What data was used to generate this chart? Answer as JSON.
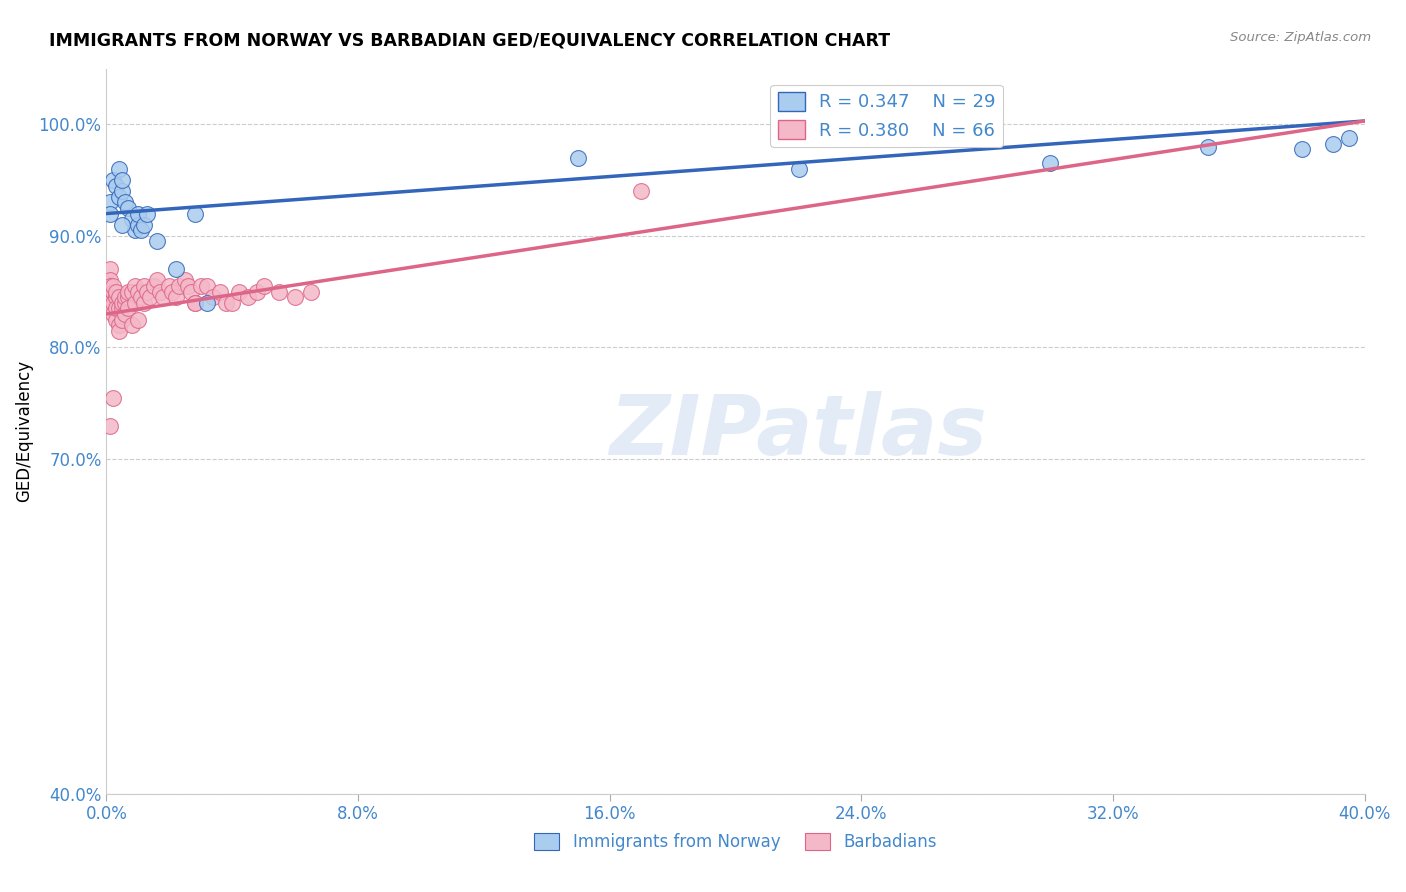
{
  "title": "IMMIGRANTS FROM NORWAY VS BARBADIAN GED/EQUIVALENCY CORRELATION CHART",
  "source": "Source: ZipAtlas.com",
  "ylabel": "GED/Equivalency",
  "yaxis_labels": [
    "100.0%",
    "90.0%",
    "80.0%",
    "70.0%",
    "40.0%"
  ],
  "yaxis_values": [
    1.0,
    0.9,
    0.8,
    0.7,
    0.4
  ],
  "xlim": [
    0.0,
    0.4
  ],
  "ylim": [
    0.4,
    1.05
  ],
  "legend_norway_R": "0.347",
  "legend_norway_N": "29",
  "legend_barbadian_R": "0.380",
  "legend_barbadian_N": "66",
  "norway_color": "#aaccee",
  "barbadian_color": "#f4b8c8",
  "norway_line_color": "#3366bb",
  "barbadian_line_color": "#dd6688",
  "legend_text_color": "#4488cc",
  "watermark_text": "ZIPatlas",
  "norway_trend_x0": 0.0,
  "norway_trend_y0": 0.92,
  "norway_trend_x1": 0.4,
  "norway_trend_y1": 1.003,
  "barbadian_trend_x0": 0.0,
  "barbadian_trend_y0": 0.83,
  "barbadian_trend_x1": 0.4,
  "barbadian_trend_y1": 1.003,
  "norway_points_x": [
    0.001,
    0.001,
    0.002,
    0.003,
    0.004,
    0.004,
    0.005,
    0.005,
    0.006,
    0.007,
    0.008,
    0.009,
    0.01,
    0.01,
    0.011,
    0.012,
    0.013,
    0.016,
    0.022,
    0.028,
    0.032,
    0.15,
    0.22,
    0.3,
    0.35,
    0.38,
    0.39,
    0.395,
    0.005
  ],
  "norway_points_y": [
    0.93,
    0.92,
    0.95,
    0.945,
    0.935,
    0.96,
    0.94,
    0.95,
    0.93,
    0.925,
    0.915,
    0.905,
    0.91,
    0.92,
    0.905,
    0.91,
    0.92,
    0.895,
    0.87,
    0.92,
    0.84,
    0.97,
    0.96,
    0.965,
    0.98,
    0.978,
    0.982,
    0.988,
    0.91
  ],
  "barbadian_points_x": [
    0.001,
    0.001,
    0.001,
    0.001,
    0.001,
    0.002,
    0.002,
    0.002,
    0.002,
    0.003,
    0.003,
    0.003,
    0.003,
    0.004,
    0.004,
    0.004,
    0.004,
    0.005,
    0.005,
    0.005,
    0.006,
    0.006,
    0.006,
    0.007,
    0.007,
    0.007,
    0.008,
    0.008,
    0.009,
    0.009,
    0.01,
    0.01,
    0.011,
    0.012,
    0.012,
    0.013,
    0.014,
    0.015,
    0.016,
    0.017,
    0.018,
    0.02,
    0.021,
    0.022,
    0.023,
    0.025,
    0.026,
    0.027,
    0.028,
    0.03,
    0.032,
    0.034,
    0.036,
    0.038,
    0.04,
    0.042,
    0.045,
    0.048,
    0.05,
    0.055,
    0.06,
    0.065,
    0.17,
    0.028,
    0.002,
    0.001
  ],
  "barbadian_points_y": [
    0.87,
    0.86,
    0.84,
    0.855,
    0.835,
    0.85,
    0.84,
    0.855,
    0.83,
    0.845,
    0.825,
    0.835,
    0.85,
    0.82,
    0.835,
    0.845,
    0.815,
    0.835,
    0.84,
    0.825,
    0.84,
    0.83,
    0.845,
    0.845,
    0.835,
    0.85,
    0.85,
    0.82,
    0.84,
    0.855,
    0.85,
    0.825,
    0.845,
    0.855,
    0.84,
    0.85,
    0.845,
    0.855,
    0.86,
    0.85,
    0.845,
    0.855,
    0.85,
    0.845,
    0.855,
    0.86,
    0.855,
    0.85,
    0.84,
    0.855,
    0.855,
    0.845,
    0.85,
    0.84,
    0.84,
    0.85,
    0.845,
    0.85,
    0.855,
    0.85,
    0.845,
    0.85,
    0.94,
    0.84,
    0.755,
    0.73
  ]
}
